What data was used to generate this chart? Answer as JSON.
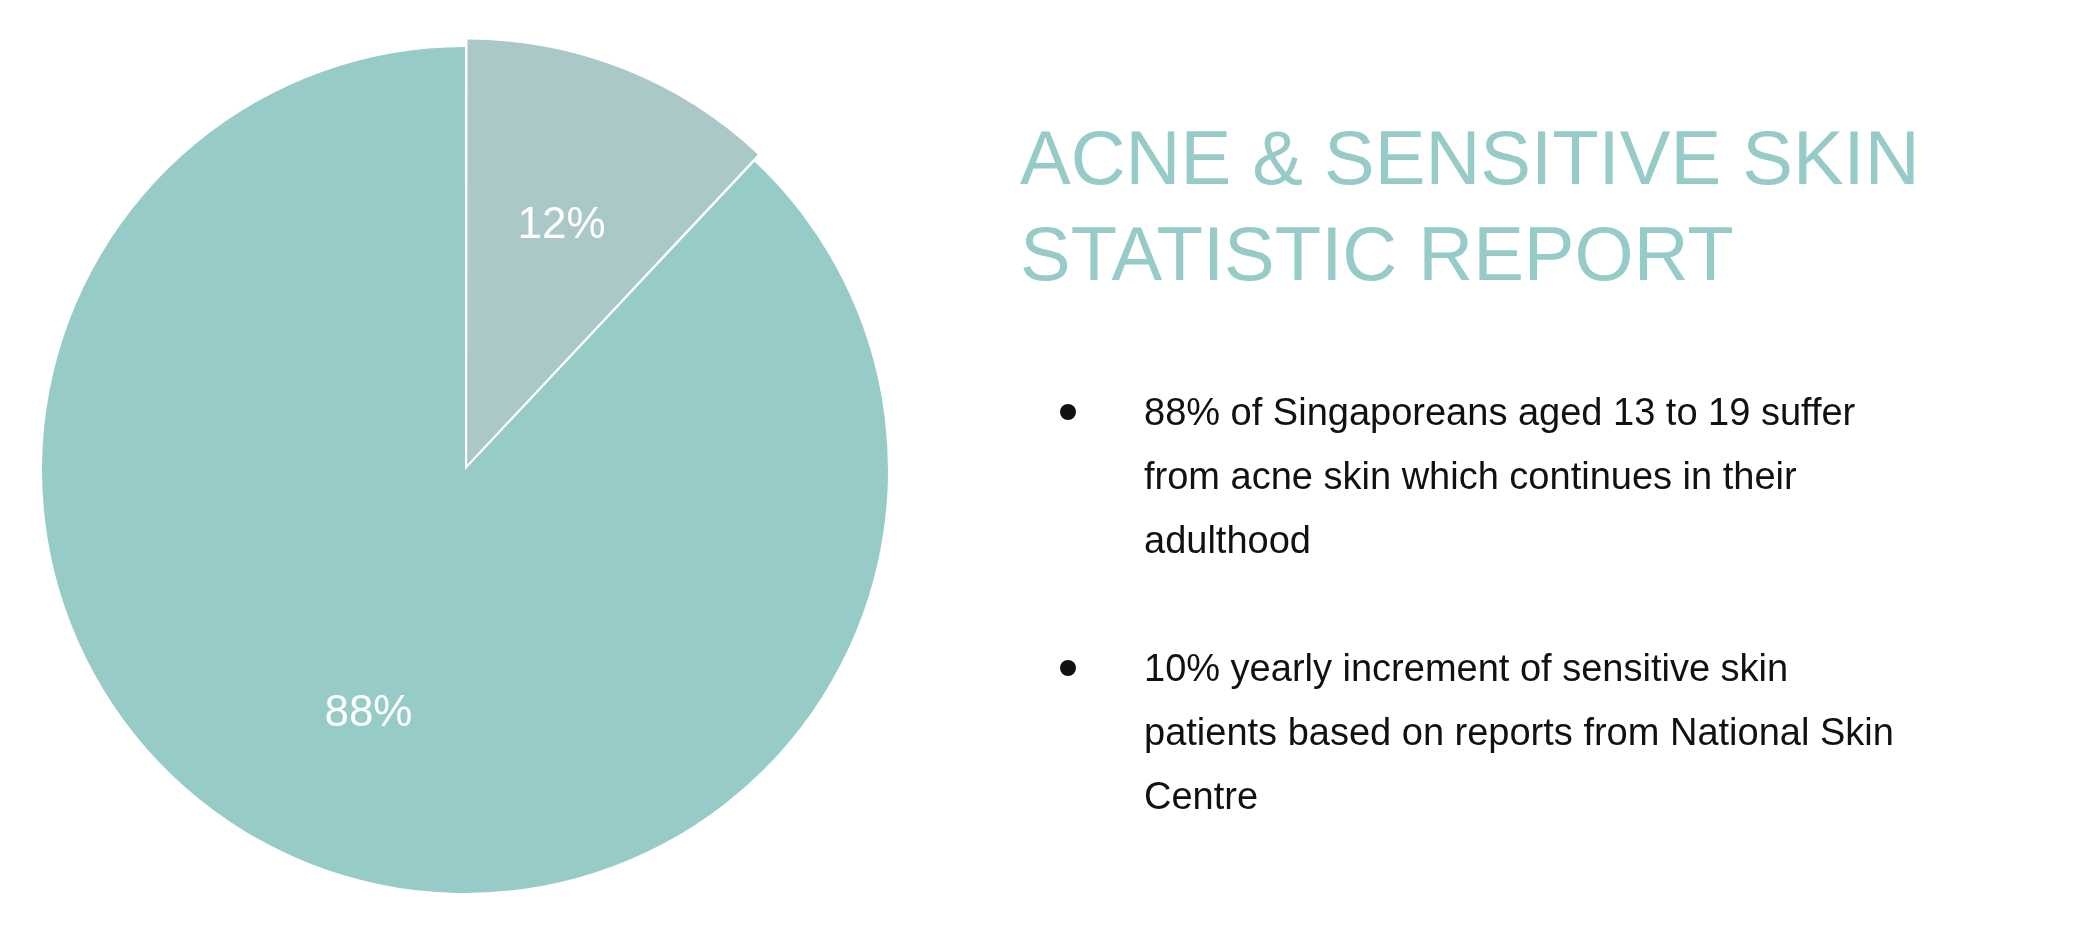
{
  "chart_data": {
    "type": "pie",
    "title": "ACNE & SENSITIVE SKIN STATISTIC REPORT",
    "categories": [
      null,
      null
    ],
    "values": [
      12,
      88
    ],
    "colors": [
      "#abc8c8",
      "#96cbc8"
    ],
    "value_labels": [
      "12%",
      "88%"
    ],
    "legend": false,
    "annotations": [
      "88% of Singaporeans aged 13 to 19 suffer from acne skin which continues in their adulthood",
      "10% yearly increment of sensitive skin patients based on reports from National Skin Centre"
    ]
  }
}
